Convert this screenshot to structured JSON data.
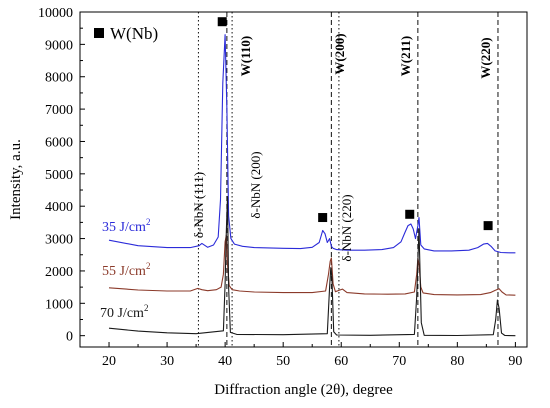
{
  "chart_data": {
    "type": "line",
    "xlabel": "Diffraction angle (2θ), degree",
    "ylabel": "Intensity, a.u.",
    "xlim": [
      15,
      92
    ],
    "ylim": [
      -350,
      10000
    ],
    "x_ticks": [
      "20",
      "30",
      "40",
      "50",
      "60",
      "70",
      "80",
      "90"
    ],
    "y_ticks": [
      "0",
      "1000",
      "2000",
      "3000",
      "4000",
      "5000",
      "6000",
      "7000",
      "8000",
      "9000",
      "10000"
    ],
    "legend": {
      "marker_label": "W(Nb)",
      "position": "top-left"
    },
    "series": [
      {
        "name": "35 J/cm²",
        "label_main": "35 J/cm",
        "label_sup": "2",
        "color": "#2b2bd9",
        "x": [
          20,
          25,
          30,
          34,
          35.5,
          36,
          37,
          38,
          38.8,
          39.2,
          39.6,
          40.0,
          40.3,
          40.6,
          41.0,
          41.6,
          43,
          45,
          50,
          53,
          55,
          56.2,
          56.8,
          57.2,
          57.6,
          58.0,
          58.3,
          58.6,
          59.2,
          61,
          64,
          67,
          69,
          70.3,
          71.0,
          71.5,
          72.0,
          72.4,
          72.8,
          73.2,
          73.4,
          73.7,
          74.3,
          76,
          79,
          82,
          83.5,
          84.5,
          85.2,
          85.8,
          86.5,
          87.5,
          89,
          90
        ],
        "y": [
          2950,
          2780,
          2720,
          2720,
          2780,
          2850,
          2730,
          2800,
          3050,
          4200,
          7800,
          9300,
          7000,
          3700,
          3000,
          2830,
          2760,
          2720,
          2700,
          2690,
          2730,
          2880,
          3250,
          3150,
          2880,
          3000,
          2760,
          2700,
          2660,
          2640,
          2640,
          2660,
          2720,
          2900,
          3200,
          3400,
          3450,
          3300,
          3000,
          3400,
          3650,
          2800,
          2680,
          2620,
          2620,
          2640,
          2720,
          2830,
          2850,
          2760,
          2620,
          2570,
          2560,
          2560
        ]
      },
      {
        "name": "55 J/cm²",
        "label_main": "55 J/cm",
        "label_sup": "2",
        "color": "#8b3a2a",
        "x": [
          20,
          25,
          30,
          34,
          35.3,
          36,
          37,
          38.5,
          39.3,
          39.7,
          40.0,
          40.2,
          40.4,
          40.7,
          41.2,
          42.5,
          45,
          50,
          55,
          57.3,
          57.8,
          58.1,
          58.3,
          58.6,
          59.0,
          59.6,
          60.2,
          61,
          64,
          68,
          71,
          72.6,
          73.0,
          73.2,
          73.4,
          73.7,
          74.1,
          76,
          80,
          84,
          85.7,
          86.5,
          87.2,
          87.7,
          88.4,
          90
        ],
        "y": [
          1480,
          1410,
          1380,
          1380,
          1460,
          1420,
          1390,
          1420,
          1500,
          1900,
          2900,
          3100,
          2200,
          1550,
          1420,
          1380,
          1350,
          1330,
          1330,
          1380,
          1900,
          2300,
          2400,
          1600,
          1360,
          1400,
          1440,
          1330,
          1290,
          1280,
          1290,
          1350,
          1900,
          2400,
          2200,
          1500,
          1320,
          1270,
          1260,
          1270,
          1330,
          1400,
          1450,
          1350,
          1260,
          1250
        ]
      },
      {
        "name": "70 J/cm²",
        "label_main": "70 J/cm",
        "label_sup": "2",
        "color": "#1a1a1a",
        "x": [
          20,
          25,
          30,
          35,
          39.7,
          40.0,
          40.2,
          40.4,
          40.6,
          40.9,
          42,
          50,
          57.6,
          58.0,
          58.2,
          58.4,
          58.7,
          59.2,
          65,
          72.6,
          73.0,
          73.2,
          73.4,
          73.8,
          74.3,
          80,
          86.2,
          86.6,
          86.9,
          87.2,
          87.6,
          88.2,
          90
        ],
        "y": [
          230,
          140,
          90,
          60,
          150,
          1600,
          3200,
          4300,
          1500,
          100,
          40,
          30,
          60,
          1500,
          2100,
          1800,
          120,
          20,
          10,
          40,
          1200,
          2300,
          3300,
          400,
          10,
          5,
          30,
          500,
          1100,
          850,
          80,
          5,
          0
        ]
      }
    ],
    "vertical_lines": [
      {
        "label": "δ-NbN (111)",
        "x": 35.4,
        "style": "dotted"
      },
      {
        "label": "δ-NbN (200)",
        "x": 41.2,
        "style": "dotted"
      },
      {
        "label": "δ-NbN (220)",
        "x": 59.6,
        "style": "dotted"
      },
      {
        "label": "W(110)",
        "x": 40.3,
        "style": "dashed"
      },
      {
        "label": "W(200)",
        "x": 58.3,
        "style": "dashed"
      },
      {
        "label": "W(211)",
        "x": 73.2,
        "style": "dashed"
      },
      {
        "label": "W(220)",
        "x": 87.0,
        "style": "dashed"
      }
    ],
    "markers": [
      {
        "x": 39.5,
        "y": 9700
      },
      {
        "x": 56.8,
        "y": 3650
      },
      {
        "x": 71.8,
        "y": 3750
      },
      {
        "x": 85.3,
        "y": 3400
      }
    ]
  }
}
